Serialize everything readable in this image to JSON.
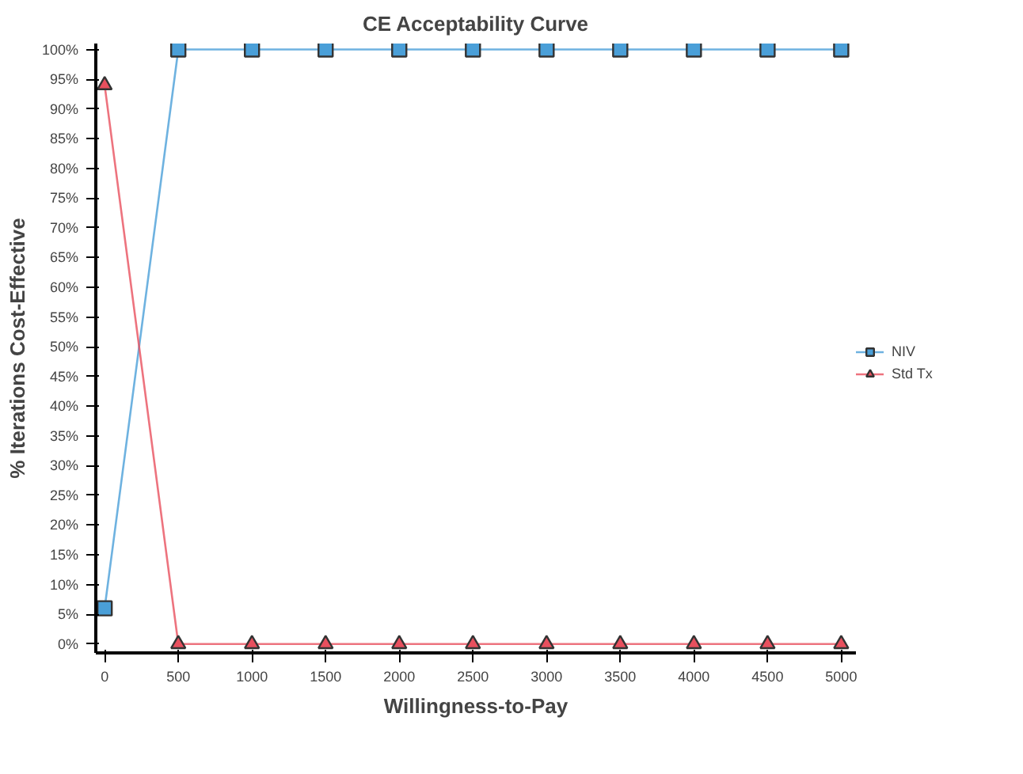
{
  "chart_data": {
    "type": "line",
    "title": "CE Acceptability Curve",
    "xlabel": "Willingness-to-Pay",
    "ylabel": "% Iterations Cost-Effective",
    "x": [
      0,
      500,
      1000,
      1500,
      2000,
      2500,
      3000,
      3500,
      4000,
      4500,
      5000
    ],
    "series": [
      {
        "name": "NIV",
        "color": "#4a9fd8",
        "marker": "square",
        "values": [
          6,
          100,
          100,
          100,
          100,
          100,
          100,
          100,
          100,
          100,
          100
        ]
      },
      {
        "name": "Std Tx",
        "color": "#e8505e",
        "marker": "triangle",
        "values": [
          94,
          0,
          0,
          0,
          0,
          0,
          0,
          0,
          0,
          0,
          0
        ]
      }
    ],
    "xlim": [
      -60,
      5100
    ],
    "ylim": [
      -1.5,
      101
    ],
    "xticks": [
      0,
      500,
      1000,
      1500,
      2000,
      2500,
      3000,
      3500,
      4000,
      4500,
      5000
    ],
    "yticks": [
      {
        "value": 0,
        "label": "0%"
      },
      {
        "value": 5,
        "label": "5%"
      },
      {
        "value": 10,
        "label": "10%"
      },
      {
        "value": 15,
        "label": "15%"
      },
      {
        "value": 20,
        "label": "20%"
      },
      {
        "value": 25,
        "label": "25%"
      },
      {
        "value": 30,
        "label": "30%"
      },
      {
        "value": 35,
        "label": "35%"
      },
      {
        "value": 40,
        "label": "40%"
      },
      {
        "value": 45,
        "label": "45%"
      },
      {
        "value": 50,
        "label": "50%"
      },
      {
        "value": 55,
        "label": "55%"
      },
      {
        "value": 60,
        "label": "60%"
      },
      {
        "value": 65,
        "label": "65%"
      },
      {
        "value": 70,
        "label": "70%"
      },
      {
        "value": 75,
        "label": "75%"
      },
      {
        "value": 80,
        "label": "80%"
      },
      {
        "value": 85,
        "label": "85%"
      },
      {
        "value": 90,
        "label": "90%"
      },
      {
        "value": 95,
        "label": "95%"
      },
      {
        "value": 100,
        "label": "100%"
      }
    ],
    "grid": false,
    "legend": "right",
    "line_style": "solid"
  }
}
